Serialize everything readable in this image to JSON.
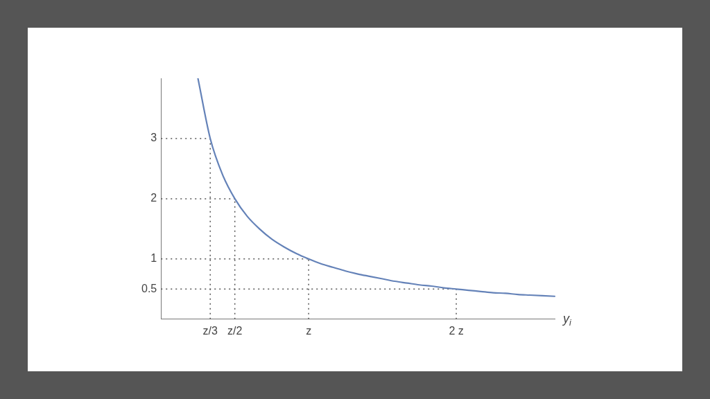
{
  "chart_data": {
    "type": "line",
    "xlabel": "y$_{i}$",
    "ylim": [
      0,
      4
    ],
    "yticks": [
      0.5,
      1,
      2,
      3
    ],
    "grid": false,
    "legend": false,
    "marker": "none",
    "categories": [
      null,
      null,
      null,
      null,
      "z/3",
      null,
      "z/2",
      null,
      null,
      null,
      null,
      null,
      "z",
      null,
      null,
      null,
      null,
      null,
      null,
      null,
      null,
      null,
      null,
      null,
      "2 z",
      null,
      null,
      null,
      null,
      null,
      null,
      null,
      null
    ],
    "series": [
      {
        "color": "#6482b8",
        "line_style": "solid",
        "values": [
          null,
          null,
          null,
          4,
          3,
          2.4,
          2,
          1.71,
          1.5,
          1.33,
          1.2,
          1.09,
          1,
          0.92,
          0.86,
          0.8,
          0.75,
          0.71,
          0.67,
          0.63,
          0.6,
          0.57,
          0.55,
          0.52,
          0.5,
          0.48,
          0.46,
          0.44,
          0.43,
          0.41,
          0.4,
          0.39,
          0.38
        ]
      }
    ],
    "ref_lines": [
      {
        "axis": "y",
        "value": 3,
        "color": "#555555",
        "line_style": "dotted"
      },
      {
        "axis": "y",
        "value": 2,
        "color": "#555555",
        "line_style": "dotted"
      },
      {
        "axis": "y",
        "value": 1,
        "color": "#555555",
        "line_style": "dotted"
      },
      {
        "axis": "y",
        "value": 0.5,
        "color": "#555555",
        "line_style": "dotted"
      },
      {
        "axis": "x",
        "value": "z/3",
        "color": "#555555",
        "line_style": "dotted"
      },
      {
        "axis": "x",
        "value": "z/2",
        "color": "#555555",
        "line_style": "dotted"
      },
      {
        "axis": "x",
        "value": "z",
        "color": "#555555",
        "line_style": "dotted"
      },
      {
        "axis": "x",
        "value": "2 z",
        "color": "#555555",
        "line_style": "dotted"
      }
    ]
  }
}
